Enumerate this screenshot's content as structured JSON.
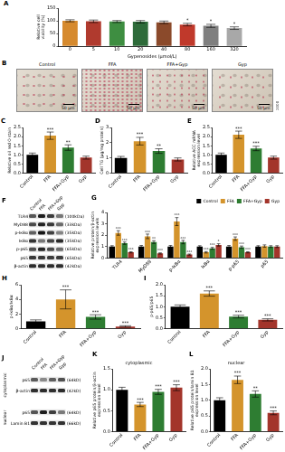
{
  "chart_data": [
    {
      "type": "bar",
      "title": "A",
      "ylabel": [
        "Relative cell",
        "viability (%)"
      ],
      "xlabel": "Gypenosides (μmol/L)",
      "categories": [
        "0",
        "5",
        "10",
        "20",
        "40",
        "80",
        "160",
        "320"
      ],
      "values": [
        100,
        98,
        97,
        96,
        94,
        85,
        80,
        71
      ],
      "errors": [
        4,
        5,
        4,
        5,
        5,
        5,
        6,
        5
      ],
      "annotations": [
        null,
        null,
        null,
        null,
        null,
        "*",
        "*",
        "*"
      ],
      "colors": [
        "#d68a2e",
        "#b03a2e",
        "#3e8e41",
        "#2e6b3a",
        "#8b4a2b",
        "#c0392b",
        "#7f7f7f",
        "#a8a8a8"
      ],
      "ylim": [
        0,
        150
      ],
      "yticks": [
        0,
        50,
        100,
        150
      ],
      "grid": false
    },
    {
      "type": "bar",
      "title": "C",
      "ylabel": "Relative oil red O stain",
      "categories": [
        "Control",
        "FFA",
        "FFA+Gyp",
        "Gyp"
      ],
      "values": [
        1.0,
        2.05,
        1.4,
        0.85
      ],
      "errors": [
        0.1,
        0.2,
        0.15,
        0.08
      ],
      "annotations": [
        null,
        "***",
        "**",
        null
      ],
      "colors": [
        "#000000",
        "#d4942c",
        "#2e7d32",
        "#a3352b"
      ],
      "ylim": [
        0,
        2.5
      ],
      "yticks": [
        {
          "value": 0,
          "label": "0.0"
        },
        0.5,
        {
          "value": 1,
          "label": "1.0"
        },
        1.5,
        {
          "value": 2,
          "label": "2.0"
        },
        2.5
      ],
      "grid": false
    },
    {
      "type": "bar",
      "title": "D",
      "ylabel": "Cell TG (μg/mg protein)",
      "categories": [
        "Control",
        "FFA",
        "FFA+Gyp",
        "Gyp"
      ],
      "values": [
        1.0,
        2.1,
        1.45,
        0.9
      ],
      "errors": [
        0.1,
        0.25,
        0.15,
        0.1
      ],
      "annotations": [
        null,
        "***",
        "**",
        null
      ],
      "colors": [
        "#000000",
        "#d4942c",
        "#2e7d32",
        "#a3352b"
      ],
      "ylim": [
        0,
        3
      ],
      "yticks": [
        0,
        1,
        2,
        3
      ],
      "grid": false
    },
    {
      "type": "bar",
      "title": "E",
      "ylabel": [
        "Relative ACC mRNA",
        "expression level"
      ],
      "categories": [
        "Control",
        "FFA",
        "FFA+Gyp",
        "Gyp"
      ],
      "values": [
        1.0,
        2.1,
        1.35,
        0.85
      ],
      "errors": [
        0.1,
        0.2,
        0.12,
        0.08
      ],
      "annotations": [
        null,
        "***",
        "***",
        null
      ],
      "colors": [
        "#000000",
        "#d4942c",
        "#2e7d32",
        "#a3352b"
      ],
      "ylim": [
        0,
        2.5
      ],
      "yticks": [
        {
          "value": 0,
          "label": "0.0"
        },
        0.5,
        {
          "value": 1,
          "label": "1.0"
        },
        1.5,
        {
          "value": 2,
          "label": "2.0"
        },
        2.5
      ],
      "grid": false
    },
    {
      "type": "bar",
      "title": "G",
      "ylabel": [
        "Relative protein/β-actin",
        "expression levels"
      ],
      "categories": [
        "TLR4",
        "MyD88",
        "p-IκBα",
        "IκBα",
        "p-p65",
        "p65"
      ],
      "series": [
        {
          "name": "Control",
          "color": "#000000",
          "values": [
            1,
            1,
            1,
            1,
            1,
            1
          ],
          "errors": [
            0.08,
            0.1,
            0.1,
            0.08,
            0.1,
            0.08
          ],
          "annotations": [
            null,
            null,
            null,
            null,
            null,
            null
          ]
        },
        {
          "name": "FFA",
          "color": "#d4942c",
          "values": [
            2.2,
            1.9,
            3.2,
            0.5,
            1.7,
            1.05
          ],
          "errors": [
            0.2,
            0.2,
            0.35,
            0.06,
            0.15,
            0.1
          ],
          "annotations": [
            "***",
            "***",
            "***",
            "***",
            "***",
            null
          ]
        },
        {
          "name": "FFA+Gyp",
          "color": "#2e7d32",
          "values": [
            1.3,
            1.4,
            1.4,
            0.85,
            0.95,
            1.0
          ],
          "errors": [
            0.1,
            0.12,
            0.15,
            0.08,
            0.1,
            0.08
          ],
          "annotations": [
            "***",
            "**",
            "***",
            "***",
            "***",
            null
          ]
        },
        {
          "name": "Gyp",
          "color": "#a3352b",
          "values": [
            0.5,
            0.4,
            0.3,
            1.15,
            0.5,
            1.0
          ],
          "errors": [
            0.05,
            0.05,
            0.05,
            0.1,
            0.05,
            0.08
          ],
          "annotations": [
            "***",
            "***",
            "***",
            "*",
            "***",
            null
          ]
        }
      ],
      "legend": "top-right",
      "ylim": [
        0,
        4
      ],
      "yticks": [
        0,
        1,
        2,
        3,
        4
      ],
      "grid": false
    },
    {
      "type": "bar",
      "title": "H",
      "ylabel": "p-IκBα/IκBα",
      "categories": [
        "Control",
        "FFA",
        "FFA+Gyp",
        "Gyp"
      ],
      "values": [
        1.0,
        4.0,
        1.6,
        0.3
      ],
      "errors": [
        0.2,
        1.3,
        0.3,
        0.1
      ],
      "annotations": [
        null,
        "***",
        "***",
        "***"
      ],
      "colors": [
        "#000000",
        "#d4942c",
        "#2e7d32",
        "#a3352b"
      ],
      "ylim": [
        0,
        6
      ],
      "yticks": [
        0,
        2,
        4,
        6
      ],
      "grid": false
    },
    {
      "type": "bar",
      "title": "I",
      "ylabel": "p-p65/p65",
      "categories": [
        "Control",
        "FFA",
        "FFA+Gyp",
        "Gyp"
      ],
      "values": [
        1.0,
        1.6,
        0.55,
        0.4
      ],
      "errors": [
        0.08,
        0.12,
        0.06,
        0.05
      ],
      "annotations": [
        null,
        "***",
        "***",
        "***"
      ],
      "colors": [
        "#000000",
        "#d4942c",
        "#2e7d32",
        "#a3352b"
      ],
      "ylim": [
        0,
        2
      ],
      "yticks": [
        {
          "value": 0,
          "label": "0.0"
        },
        0.5,
        {
          "value": 1,
          "label": "1.0"
        },
        1.5,
        {
          "value": 2,
          "label": "2.0"
        }
      ],
      "grid": false
    },
    {
      "type": "bar",
      "title": "K",
      "subtitle": "cytoplasmic",
      "ylabel": [
        "Relative p65 protein/β-actin",
        "expression level"
      ],
      "categories": [
        "Control",
        "FFA",
        "FFA+Gyp",
        "Gyp"
      ],
      "values": [
        1.0,
        0.65,
        0.95,
        1.05
      ],
      "errors": [
        0.06,
        0.05,
        0.06,
        0.07
      ],
      "annotations": [
        null,
        "***",
        "***",
        "***"
      ],
      "colors": [
        "#000000",
        "#d4942c",
        "#2e7d32",
        "#a3352b"
      ],
      "ylim": [
        0,
        1.5
      ],
      "yticks": [
        {
          "value": 0,
          "label": "0.0"
        },
        0.5,
        {
          "value": 1,
          "label": "1.0"
        },
        1.5
      ],
      "grid": false
    },
    {
      "type": "bar",
      "title": "L",
      "subtitle": "nuclear",
      "ylabel": [
        "Relative p65 protein/lamin B1",
        "expression level"
      ],
      "categories": [
        "Control",
        "FFA",
        "FFA+Gyp",
        "Gyp"
      ],
      "values": [
        1.0,
        1.65,
        1.2,
        0.6
      ],
      "errors": [
        0.08,
        0.12,
        0.1,
        0.06
      ],
      "annotations": [
        null,
        "***",
        "**",
        "***"
      ],
      "colors": [
        "#000000",
        "#d4942c",
        "#2e7d32",
        "#a3352b"
      ],
      "ylim": [
        0,
        2
      ],
      "yticks": [
        {
          "value": 0,
          "label": "0.0"
        },
        0.5,
        {
          "value": 1,
          "label": "1.0"
        },
        1.5,
        {
          "value": 2,
          "label": "2.0"
        }
      ],
      "grid": false
    }
  ],
  "micrographs": {
    "title": "B",
    "labels": [
      "Control",
      "FFA",
      "FFA+Gyp",
      "Gyp"
    ],
    "scale_bar": "50 μm",
    "side_text": "2008"
  },
  "blots": [
    {
      "title": "F",
      "lanes": [
        "Control",
        "FFA",
        "FFA+Gyp",
        "Gyp"
      ],
      "rows": [
        {
          "name": "TLR4",
          "size": "(100kDa)"
        },
        {
          "name": "MyD88",
          "size": "(33kDa)"
        },
        {
          "name": "p-IκBα",
          "size": "(35kDa)"
        },
        {
          "name": "IκBα",
          "size": "(35kDa)"
        },
        {
          "name": "p-p65",
          "size": "(65kDa)"
        },
        {
          "name": "p65",
          "size": "(65kDa)"
        },
        {
          "name": "β-actin",
          "size": "(42kDa)"
        }
      ]
    },
    {
      "title": "J",
      "lanes": [
        "Control",
        "FFA",
        "FFA+Gyp",
        "Gyp"
      ],
      "groups": [
        {
          "name": "cytoplasmic",
          "rows": [
            {
              "name": "p65",
              "size": "(64kD)"
            },
            {
              "name": "β-actin",
              "size": "(42kD)"
            }
          ]
        },
        {
          "name": "nuclear",
          "rows": [
            {
              "name": "p65",
              "size": "(64kD)"
            },
            {
              "name": "Lamin B1",
              "size": "(66kD)"
            }
          ]
        }
      ]
    }
  ]
}
